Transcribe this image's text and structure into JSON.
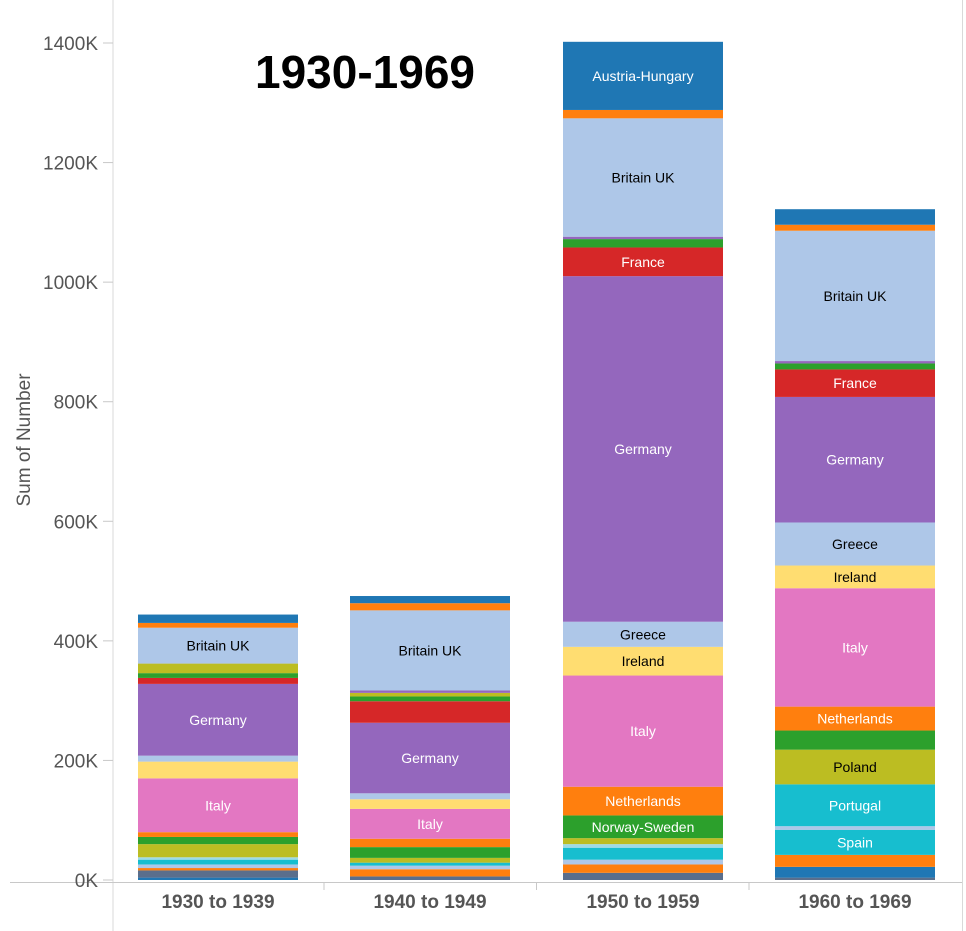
{
  "chart_data": {
    "type": "bar",
    "stacked": true,
    "title": "1930-1969",
    "xlabel": "",
    "ylabel": "Sum of Number",
    "ylim": [
      0,
      1400000
    ],
    "yticks": [
      {
        "value": 0,
        "label": "0K"
      },
      {
        "value": 200000,
        "label": "200K"
      },
      {
        "value": 400000,
        "label": "400K"
      },
      {
        "value": 600000,
        "label": "600K"
      },
      {
        "value": 800000,
        "label": "800K"
      },
      {
        "value": 1000000,
        "label": "1000K"
      },
      {
        "value": 1200000,
        "label": "1200K"
      },
      {
        "value": 1400000,
        "label": "1400K"
      }
    ],
    "categories": [
      "1930 to 1939",
      "1940 to 1949",
      "1950 to 1959",
      "1960 to 1969"
    ],
    "stacks": [
      {
        "category": "1930 to 1939",
        "segments": [
          {
            "value": 4000,
            "color": "#1f77b4",
            "label": ""
          },
          {
            "value": 12000,
            "color": "#5a6e8c",
            "label": ""
          },
          {
            "value": 4000,
            "color": "#ff7f0e",
            "label": ""
          },
          {
            "value": 6000,
            "color": "#aec7e8",
            "label": ""
          },
          {
            "value": 8000,
            "color": "#17becf",
            "label": ""
          },
          {
            "value": 4000,
            "color": "#9edae5",
            "label": ""
          },
          {
            "value": 22000,
            "color": "#bcbd22",
            "label": ""
          },
          {
            "value": 12000,
            "color": "#2ca02c",
            "label": ""
          },
          {
            "value": 8000,
            "color": "#ff7f0e",
            "label": ""
          },
          {
            "value": 90000,
            "color": "#e377c2",
            "label": "Italy"
          },
          {
            "value": 28000,
            "color": "#ffdd71",
            "label": ""
          },
          {
            "value": 10000,
            "color": "#aec7e8",
            "label": ""
          },
          {
            "value": 120000,
            "color": "#9467bd",
            "label": "Germany"
          },
          {
            "value": 10000,
            "color": "#d62728",
            "label": ""
          },
          {
            "value": 8000,
            "color": "#2ca02c",
            "label": ""
          },
          {
            "value": 16000,
            "color": "#bcbd22",
            "label": ""
          },
          {
            "value": 60000,
            "color": "#aec7e8",
            "label": "Britain UK"
          },
          {
            "value": 8000,
            "color": "#ff7f0e",
            "label": ""
          },
          {
            "value": 14000,
            "color": "#1f77b4",
            "label": ""
          }
        ]
      },
      {
        "category": "1940 to 1949",
        "segments": [
          {
            "value": 6000,
            "color": "#5a6e8c",
            "label": ""
          },
          {
            "value": 12000,
            "color": "#ff7f0e",
            "label": ""
          },
          {
            "value": 6000,
            "color": "#aec7e8",
            "label": ""
          },
          {
            "value": 5000,
            "color": "#17becf",
            "label": ""
          },
          {
            "value": 8000,
            "color": "#bcbd22",
            "label": ""
          },
          {
            "value": 18000,
            "color": "#2ca02c",
            "label": ""
          },
          {
            "value": 14000,
            "color": "#ff7f0e",
            "label": ""
          },
          {
            "value": 50000,
            "color": "#e377c2",
            "label": "Italy"
          },
          {
            "value": 16000,
            "color": "#ffdd71",
            "label": ""
          },
          {
            "value": 10000,
            "color": "#aec7e8",
            "label": ""
          },
          {
            "value": 118000,
            "color": "#9467bd",
            "label": "Germany"
          },
          {
            "value": 36000,
            "color": "#d62728",
            "label": ""
          },
          {
            "value": 8000,
            "color": "#2ca02c",
            "label": ""
          },
          {
            "value": 6000,
            "color": "#bcbd22",
            "label": ""
          },
          {
            "value": 4000,
            "color": "#9467bd",
            "label": ""
          },
          {
            "value": 134000,
            "color": "#aec7e8",
            "label": "Britain UK"
          },
          {
            "value": 12000,
            "color": "#ff7f0e",
            "label": ""
          },
          {
            "value": 12000,
            "color": "#1f77b4",
            "label": ""
          }
        ]
      },
      {
        "category": "1950 to 1959",
        "segments": [
          {
            "value": 12000,
            "color": "#5a6e8c",
            "label": ""
          },
          {
            "value": 14000,
            "color": "#ff7f0e",
            "label": ""
          },
          {
            "value": 8000,
            "color": "#aec7e8",
            "label": ""
          },
          {
            "value": 20000,
            "color": "#17becf",
            "label": ""
          },
          {
            "value": 6000,
            "color": "#9edae5",
            "label": ""
          },
          {
            "value": 10000,
            "color": "#bcbd22",
            "label": ""
          },
          {
            "value": 38000,
            "color": "#2ca02c",
            "label": "Norway-Sweden"
          },
          {
            "value": 48000,
            "color": "#ff7f0e",
            "label": "Netherlands"
          },
          {
            "value": 186000,
            "color": "#e377c2",
            "label": "Italy"
          },
          {
            "value": 48000,
            "color": "#ffdd71",
            "label": "Ireland"
          },
          {
            "value": 42000,
            "color": "#aec7e8",
            "label": "Greece"
          },
          {
            "value": 578000,
            "color": "#9467bd",
            "label": "Germany"
          },
          {
            "value": 48000,
            "color": "#d62728",
            "label": "France"
          },
          {
            "value": 14000,
            "color": "#2ca02c",
            "label": ""
          },
          {
            "value": 4000,
            "color": "#9467bd",
            "label": ""
          },
          {
            "value": 198000,
            "color": "#aec7e8",
            "label": "Britain UK"
          },
          {
            "value": 14000,
            "color": "#ff7f0e",
            "label": ""
          },
          {
            "value": 114000,
            "color": "#1f77b4",
            "label": "Austria-Hungary"
          }
        ]
      },
      {
        "category": "1960 to 1969",
        "segments": [
          {
            "value": 4000,
            "color": "#5a6e8c",
            "label": ""
          },
          {
            "value": 18000,
            "color": "#1f77b4",
            "label": ""
          },
          {
            "value": 20000,
            "color": "#ff7f0e",
            "label": ""
          },
          {
            "value": 42000,
            "color": "#17becf",
            "label": "Spain"
          },
          {
            "value": 6000,
            "color": "#aec7e8",
            "label": ""
          },
          {
            "value": 70000,
            "color": "#17becf",
            "label": "Portugal"
          },
          {
            "value": 58000,
            "color": "#bcbd22",
            "label": "Poland"
          },
          {
            "value": 32000,
            "color": "#2ca02c",
            "label": ""
          },
          {
            "value": 40000,
            "color": "#ff7f0e",
            "label": "Netherlands"
          },
          {
            "value": 198000,
            "color": "#e377c2",
            "label": "Italy"
          },
          {
            "value": 38000,
            "color": "#ffdd71",
            "label": "Ireland"
          },
          {
            "value": 72000,
            "color": "#aec7e8",
            "label": "Greece"
          },
          {
            "value": 210000,
            "color": "#9467bd",
            "label": "Germany"
          },
          {
            "value": 46000,
            "color": "#d62728",
            "label": "France"
          },
          {
            "value": 10000,
            "color": "#2ca02c",
            "label": ""
          },
          {
            "value": 4000,
            "color": "#9467bd",
            "label": ""
          },
          {
            "value": 218000,
            "color": "#aec7e8",
            "label": "Britain UK"
          },
          {
            "value": 10000,
            "color": "#ff7f0e",
            "label": ""
          },
          {
            "value": 26000,
            "color": "#1f77b4",
            "label": ""
          }
        ]
      }
    ],
    "label_colors": {
      "dark_text": "#000000",
      "light_text": "#ffffff"
    }
  }
}
